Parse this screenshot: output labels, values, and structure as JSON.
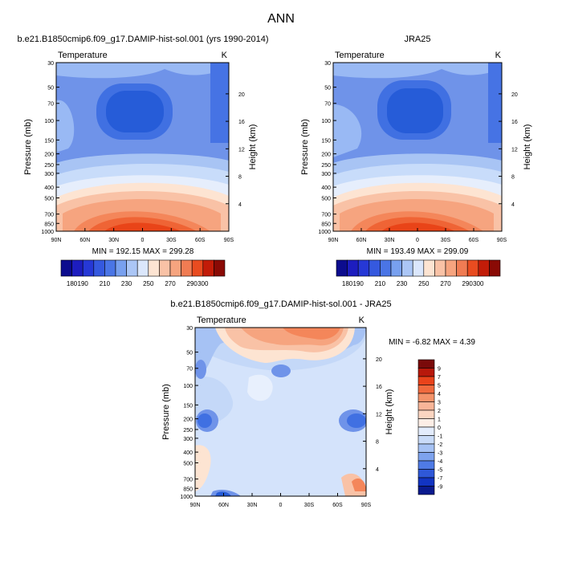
{
  "page_title": "ANN",
  "chart_data": [
    {
      "type": "heatmap",
      "title": "b.e21.B1850cmip6.f09_g17.DAMIP-hist-sol.001 (yrs 1990-2014)",
      "left_string": "Temperature",
      "right_string": "K",
      "ylabel": "Pressure (mb)",
      "ylabel_right": "Height (km)",
      "x_ticks": [
        "90N",
        "60N",
        "30N",
        "0",
        "30S",
        "60S",
        "90S"
      ],
      "y_ticks": [
        30,
        50,
        70,
        100,
        150,
        200,
        250,
        300,
        400,
        500,
        700,
        850,
        1000
      ],
      "height_ticks": [
        4,
        8,
        12,
        16,
        20
      ],
      "stats": "MIN = 192.15   MAX = 299.28",
      "colorbar_levels": [
        180,
        190,
        200,
        210,
        220,
        230,
        240,
        250,
        260,
        270,
        280,
        290,
        300
      ],
      "colorbar_labels": [
        180,
        190,
        210,
        230,
        250,
        270,
        290,
        300
      ]
    },
    {
      "type": "heatmap",
      "title": "JRA25",
      "left_string": "Temperature",
      "right_string": "K",
      "ylabel": "Pressure (mb)",
      "ylabel_right": "Height (km)",
      "x_ticks": [
        "90N",
        "60N",
        "30N",
        "0",
        "30S",
        "60S",
        "90S"
      ],
      "y_ticks": [
        30,
        50,
        70,
        100,
        150,
        200,
        250,
        300,
        400,
        500,
        700,
        850,
        1000
      ],
      "height_ticks": [
        4,
        8,
        12,
        16,
        20
      ],
      "stats": "MIN = 193.49   MAX = 299.09",
      "colorbar_levels": [
        180,
        190,
        200,
        210,
        220,
        230,
        240,
        250,
        260,
        270,
        280,
        290,
        300
      ],
      "colorbar_labels": [
        180,
        190,
        210,
        230,
        250,
        270,
        290,
        300
      ]
    },
    {
      "type": "heatmap",
      "title": "b.e21.B1850cmip6.f09_g17.DAMIP-hist-sol.001 - JRA25",
      "left_string": "Temperature",
      "right_string": "K",
      "ylabel": "Pressure (mb)",
      "ylabel_right": "Height (km)",
      "x_ticks": [
        "90N",
        "60N",
        "30N",
        "0",
        "30S",
        "60S",
        "90S"
      ],
      "y_ticks": [
        30,
        50,
        70,
        100,
        150,
        200,
        250,
        300,
        400,
        500,
        700,
        850,
        1000
      ],
      "height_ticks": [
        4,
        8,
        12,
        16,
        20
      ],
      "stats": "MIN =  -6.82  MAX =   4.39",
      "colorbar_levels": [
        9,
        7,
        5,
        4,
        3,
        2,
        1,
        0,
        -1,
        -2,
        -3,
        -4,
        -5,
        -7,
        -9
      ],
      "colorbar_labels": [
        9,
        7,
        5,
        4,
        3,
        2,
        1,
        0,
        -1,
        -2,
        -3,
        -4,
        -5,
        -7,
        -9
      ]
    }
  ]
}
